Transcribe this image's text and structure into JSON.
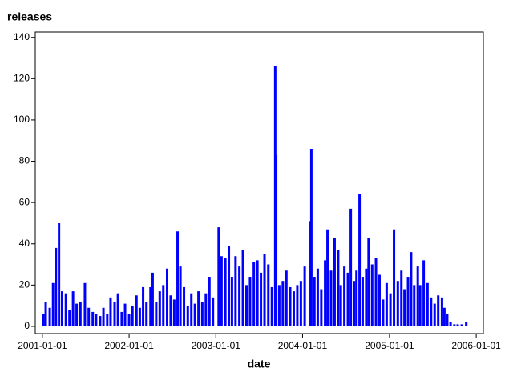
{
  "chart_data": {
    "type": "spike",
    "title": "releases",
    "x_label": "date",
    "color": "#0000ff",
    "x": [
      "2001-01-05",
      "2001-01-15",
      "2001-02-01",
      "2001-02-15",
      "2001-02-27",
      "2001-03-12",
      "2001-03-25",
      "2001-04-10",
      "2001-04-25",
      "2001-05-10",
      "2001-05-25",
      "2001-06-10",
      "2001-06-29",
      "2001-07-15",
      "2001-08-01",
      "2001-08-15",
      "2001-09-01",
      "2001-09-15",
      "2001-10-01",
      "2001-10-15",
      "2001-11-01",
      "2001-11-15",
      "2001-12-01",
      "2001-12-15",
      "2002-01-01",
      "2002-01-15",
      "2002-02-01",
      "2002-02-15",
      "2002-03-01",
      "2002-03-15",
      "2002-04-01",
      "2002-04-10",
      "2002-04-25",
      "2002-05-10",
      "2002-05-25",
      "2002-06-10",
      "2002-06-25",
      "2002-07-10",
      "2002-07-24",
      "2002-08-05",
      "2002-08-20",
      "2002-09-05",
      "2002-09-20",
      "2002-10-05",
      "2002-10-20",
      "2002-11-05",
      "2002-11-20",
      "2002-12-05",
      "2002-12-20",
      "2003-01-13",
      "2003-01-25",
      "2003-02-10",
      "2003-02-25",
      "2003-03-10",
      "2003-03-25",
      "2003-04-10",
      "2003-04-25",
      "2003-05-10",
      "2003-05-25",
      "2003-06-10",
      "2003-06-25",
      "2003-07-10",
      "2003-07-25",
      "2003-08-10",
      "2003-08-25",
      "2003-09-08",
      "2003-09-12",
      "2003-09-25",
      "2003-10-10",
      "2003-10-25",
      "2003-11-10",
      "2003-11-25",
      "2003-12-10",
      "2003-12-25",
      "2004-01-10",
      "2004-02-04",
      "2004-02-07",
      "2004-02-20",
      "2004-03-05",
      "2004-03-20",
      "2004-04-05",
      "2004-04-15",
      "2004-04-30",
      "2004-05-15",
      "2004-05-30",
      "2004-06-10",
      "2004-06-25",
      "2004-07-10",
      "2004-07-22",
      "2004-08-05",
      "2004-08-15",
      "2004-08-28",
      "2004-09-10",
      "2004-09-25",
      "2004-10-05",
      "2004-10-20",
      "2004-11-05",
      "2004-11-20",
      "2004-12-05",
      "2004-12-20",
      "2005-01-05",
      "2005-01-20",
      "2005-02-05",
      "2005-02-20",
      "2005-03-05",
      "2005-03-20",
      "2005-04-02",
      "2005-04-15",
      "2005-04-30",
      "2005-05-10",
      "2005-05-25",
      "2005-06-10",
      "2005-06-25",
      "2005-07-10",
      "2005-07-25",
      "2005-08-10",
      "2005-08-20",
      "2005-09-01",
      "2005-09-15",
      "2005-10-01",
      "2005-10-15",
      "2005-11-01",
      "2005-11-20"
    ],
    "values": [
      6,
      12,
      9,
      21,
      38,
      50,
      17,
      16,
      8,
      17,
      11,
      12,
      21,
      9,
      7,
      6,
      5,
      9,
      6,
      14,
      12,
      16,
      7,
      11,
      6,
      10,
      15,
      9,
      19,
      12,
      19,
      26,
      12,
      17,
      20,
      28,
      15,
      13,
      46,
      29,
      19,
      10,
      16,
      11,
      17,
      12,
      16,
      24,
      14,
      48,
      34,
      33,
      39,
      24,
      34,
      29,
      37,
      20,
      24,
      31,
      32,
      26,
      35,
      30,
      19,
      126,
      83,
      20,
      22,
      27,
      19,
      17,
      20,
      22,
      29,
      51,
      86,
      24,
      28,
      18,
      32,
      47,
      27,
      43,
      37,
      20,
      29,
      26,
      57,
      22,
      27,
      64,
      24,
      28,
      43,
      30,
      33,
      25,
      13,
      21,
      16,
      47,
      22,
      27,
      18,
      24,
      36,
      20,
      29,
      20,
      32,
      21,
      14,
      11,
      15,
      14,
      9,
      6,
      2,
      1,
      1,
      1,
      2
    ],
    "xlim": [
      "2000-12-02",
      "2006-01-31"
    ],
    "xticks": [
      "2001-01-01",
      "2002-01-01",
      "2003-01-01",
      "2004-01-01",
      "2005-01-01",
      "2006-01-01"
    ],
    "ylim": [
      -3.5,
      142.6
    ],
    "yticks": [
      0,
      20,
      40,
      60,
      80,
      100,
      120,
      140
    ]
  }
}
